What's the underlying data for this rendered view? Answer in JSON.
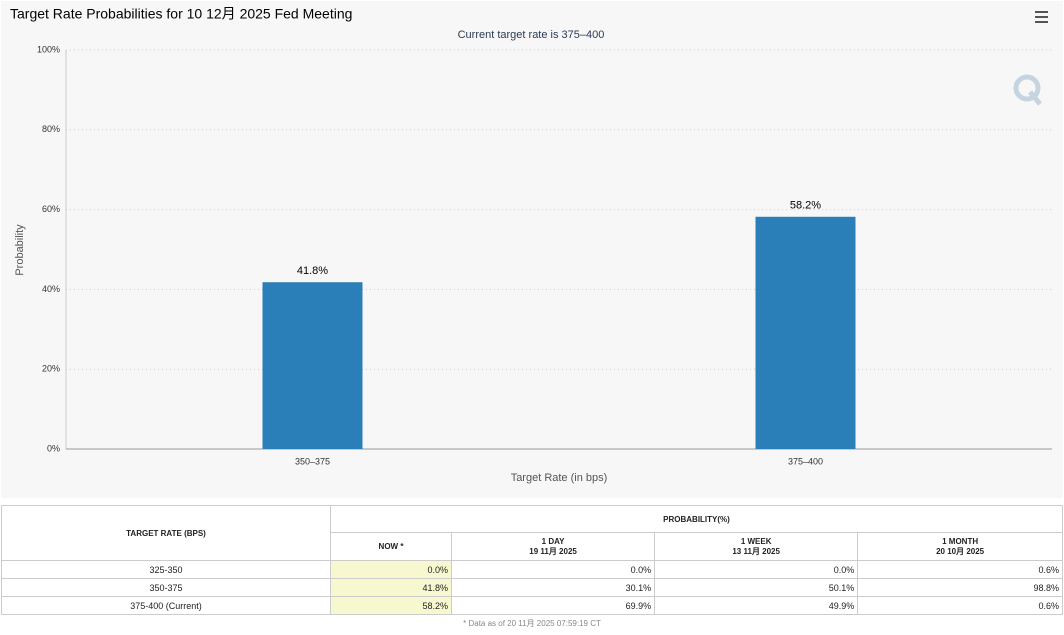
{
  "chart_data": {
    "type": "bar",
    "title": "Target Rate Probabilities for 10 12月 2025 Fed Meeting",
    "subtitle": "Current target rate is 375–400",
    "x_label": "Target Rate (in bps)",
    "y_label": "Probability",
    "categories": [
      "350–375",
      "375–400"
    ],
    "values": [
      41.8,
      58.2
    ],
    "value_labels": [
      "41.8%",
      "58.2%"
    ],
    "color": "#2b7fb8",
    "ylim": [
      0,
      100
    ],
    "yticks": [
      {
        "value": 0,
        "label": "0%"
      },
      {
        "value": 20,
        "label": "20%"
      },
      {
        "value": 40,
        "label": "40%"
      },
      {
        "value": 60,
        "label": "60%"
      },
      {
        "value": 80,
        "label": "80%"
      },
      {
        "value": 100,
        "label": "100%"
      }
    ],
    "grid": true
  },
  "table": {
    "row_header": "TARGET RATE (BPS)",
    "group_header": "PROBABILITY(%)",
    "columns": [
      {
        "label": "NOW *"
      },
      {
        "label": "1 DAY",
        "date": "19 11月 2025"
      },
      {
        "label": "1 WEEK",
        "date": "13 11月 2025"
      },
      {
        "label": "1 MONTH",
        "date": "20 10月 2025"
      }
    ],
    "rows": [
      [
        "325-350",
        "0.0%",
        "0.0%",
        "0.0%",
        "0.6%"
      ],
      [
        "350-375",
        "41.8%",
        "30.1%",
        "50.1%",
        "98.8%"
      ],
      [
        "375-400 (Current)",
        "58.2%",
        "69.9%",
        "49.9%",
        "0.6%"
      ]
    ],
    "footnote": "* Data as of 20 11月 2025 07:59:19 CT"
  }
}
